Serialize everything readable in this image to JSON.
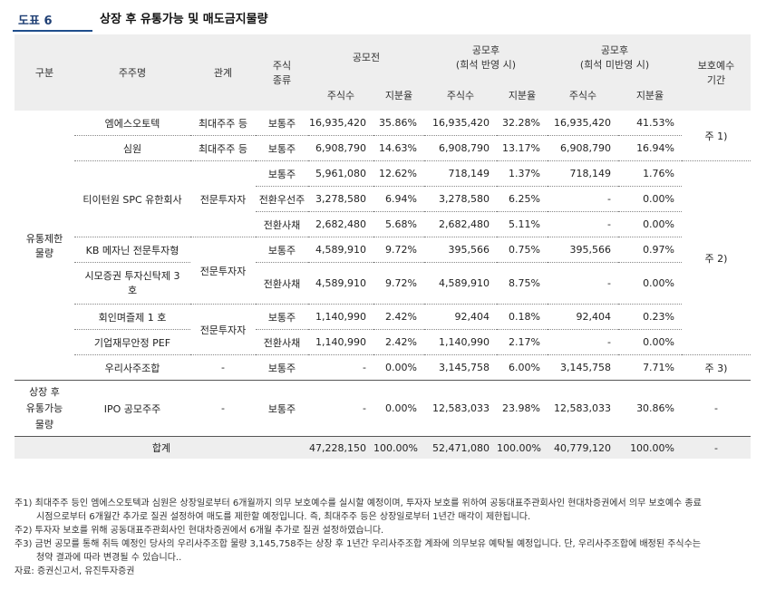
{
  "header": {
    "label": "도표 6",
    "title": "상장 후 유통가능 및 매도금지물량"
  },
  "table": {
    "headers": {
      "gubun": "구분",
      "company": "주주명",
      "relation": "관계",
      "stock_type": "주식\n종류",
      "before": "공모전",
      "after_dilution": "공모후\n(희석 반영 시)",
      "after_no_dilution": "공모후\n(희석 미반영 시)",
      "shares": "주식수",
      "ratio": "지분율",
      "lockup": "보호예수\n기간"
    },
    "groups": {
      "restricted": "유통제한\n물량",
      "tradable": "상장 후\n유통가능\n물량"
    },
    "rows": [
      {
        "name": "엠에스오토텍",
        "relation": "최대주주 등",
        "type": "보통주",
        "b_shares": "16,935,420",
        "b_ratio": "35.86%",
        "d_shares": "16,935,420",
        "d_ratio": "32.28%",
        "n_shares": "16,935,420",
        "n_ratio": "41.53%"
      },
      {
        "name": "심원",
        "relation": "최대주주 등",
        "type": "보통주",
        "b_shares": "6,908,790",
        "b_ratio": "14.63%",
        "d_shares": "6,908,790",
        "d_ratio": "13.17%",
        "n_shares": "6,908,790",
        "n_ratio": "16.94%"
      },
      {
        "name": "티이턴원 SPC 유한회사",
        "relation": "전문투자자",
        "type": "보통주",
        "b_shares": "5,961,080",
        "b_ratio": "12.62%",
        "d_shares": "718,149",
        "d_ratio": "1.37%",
        "n_shares": "718,149",
        "n_ratio": "1.76%"
      },
      {
        "name": "",
        "relation": "",
        "type": "전환우선주",
        "b_shares": "3,278,580",
        "b_ratio": "6.94%",
        "d_shares": "3,278,580",
        "d_ratio": "6.25%",
        "n_shares": "-",
        "n_ratio": "0.00%"
      },
      {
        "name": "",
        "relation": "",
        "type": "전환사채",
        "b_shares": "2,682,480",
        "b_ratio": "5.68%",
        "d_shares": "2,682,480",
        "d_ratio": "5.11%",
        "n_shares": "-",
        "n_ratio": "0.00%"
      },
      {
        "name": "KB 메자닌 전문투자형",
        "relation": "전문투자자",
        "type": "보통주",
        "b_shares": "4,589,910",
        "b_ratio": "9.72%",
        "d_shares": "395,566",
        "d_ratio": "0.75%",
        "n_shares": "395,566",
        "n_ratio": "0.97%"
      },
      {
        "name": "시모증권 투자신탁제 3 호",
        "relation": "",
        "type": "전환사채",
        "b_shares": "4,589,910",
        "b_ratio": "9.72%",
        "d_shares": "4,589,910",
        "d_ratio": "8.75%",
        "n_shares": "-",
        "n_ratio": "0.00%"
      },
      {
        "name": "회인며즐제 1 호",
        "relation": "전문투자자",
        "type": "보통주",
        "b_shares": "1,140,990",
        "b_ratio": "2.42%",
        "d_shares": "92,404",
        "d_ratio": "0.18%",
        "n_shares": "92,404",
        "n_ratio": "0.23%"
      },
      {
        "name": "기업재무안정 PEF",
        "relation": "",
        "type": "전환사채",
        "b_shares": "1,140,990",
        "b_ratio": "2.42%",
        "d_shares": "1,140,990",
        "d_ratio": "2.17%",
        "n_shares": "-",
        "n_ratio": "0.00%"
      },
      {
        "name": "우리사주조합",
        "relation": "-",
        "type": "보통주",
        "b_shares": "-",
        "b_ratio": "0.00%",
        "d_shares": "3,145,758",
        "d_ratio": "6.00%",
        "n_shares": "3,145,758",
        "n_ratio": "7.71%"
      },
      {
        "name": "IPO 공모주주",
        "relation": "-",
        "type": "보통주",
        "b_shares": "-",
        "b_ratio": "0.00%",
        "d_shares": "12,583,033",
        "d_ratio": "23.98%",
        "n_shares": "12,583,033",
        "n_ratio": "30.86%"
      }
    ],
    "lockup": {
      "note1": "주 1)",
      "note2": "주 2)",
      "note3": "주 3)",
      "ipo": "-"
    },
    "total": {
      "label": "합계",
      "b_shares": "47,228,150",
      "b_ratio": "100.00%",
      "d_shares": "52,471,080",
      "d_ratio": "100.00%",
      "n_shares": "40,779,120",
      "n_ratio": "100.00%",
      "lockup": "-"
    }
  },
  "notes": {
    "n1": "주1) 최대주주 등인 엠에스오토텍과 심원은 상장일로부터 6개월까지 의무 보호예수를 실시할 예정이며, 투자자 보호를 위하여 공동대표주관회사인 현대차증권에서 의무 보호예수 종료",
    "n1b": "시점으로부터 6개월간 추가로 질권 설정하여 매도를 제한할 예정입니다. 즉, 최대주주 등은 상장일로부터 1년간 매각이 제한됩니다.",
    "n2": "주2) 투자자 보호를 위해 공동대표주관회사인 현대차증권에서 6개월 추가로 질권 설정하였습니다.",
    "n3": "주3) 금번 공모를 통해 취득 예정인 당사의 우리사주조합 물량 3,145,758주는 상장 후 1년간 우리사주조합 계좌에 의무보유 예탁될 예정입니다. 단, 우리사주조합에 배정된 주식수는",
    "n3b": "청약 결과에 따라 변경될 수 있습니다..",
    "source": "자료: 증권신고서, 유진투자증권"
  }
}
